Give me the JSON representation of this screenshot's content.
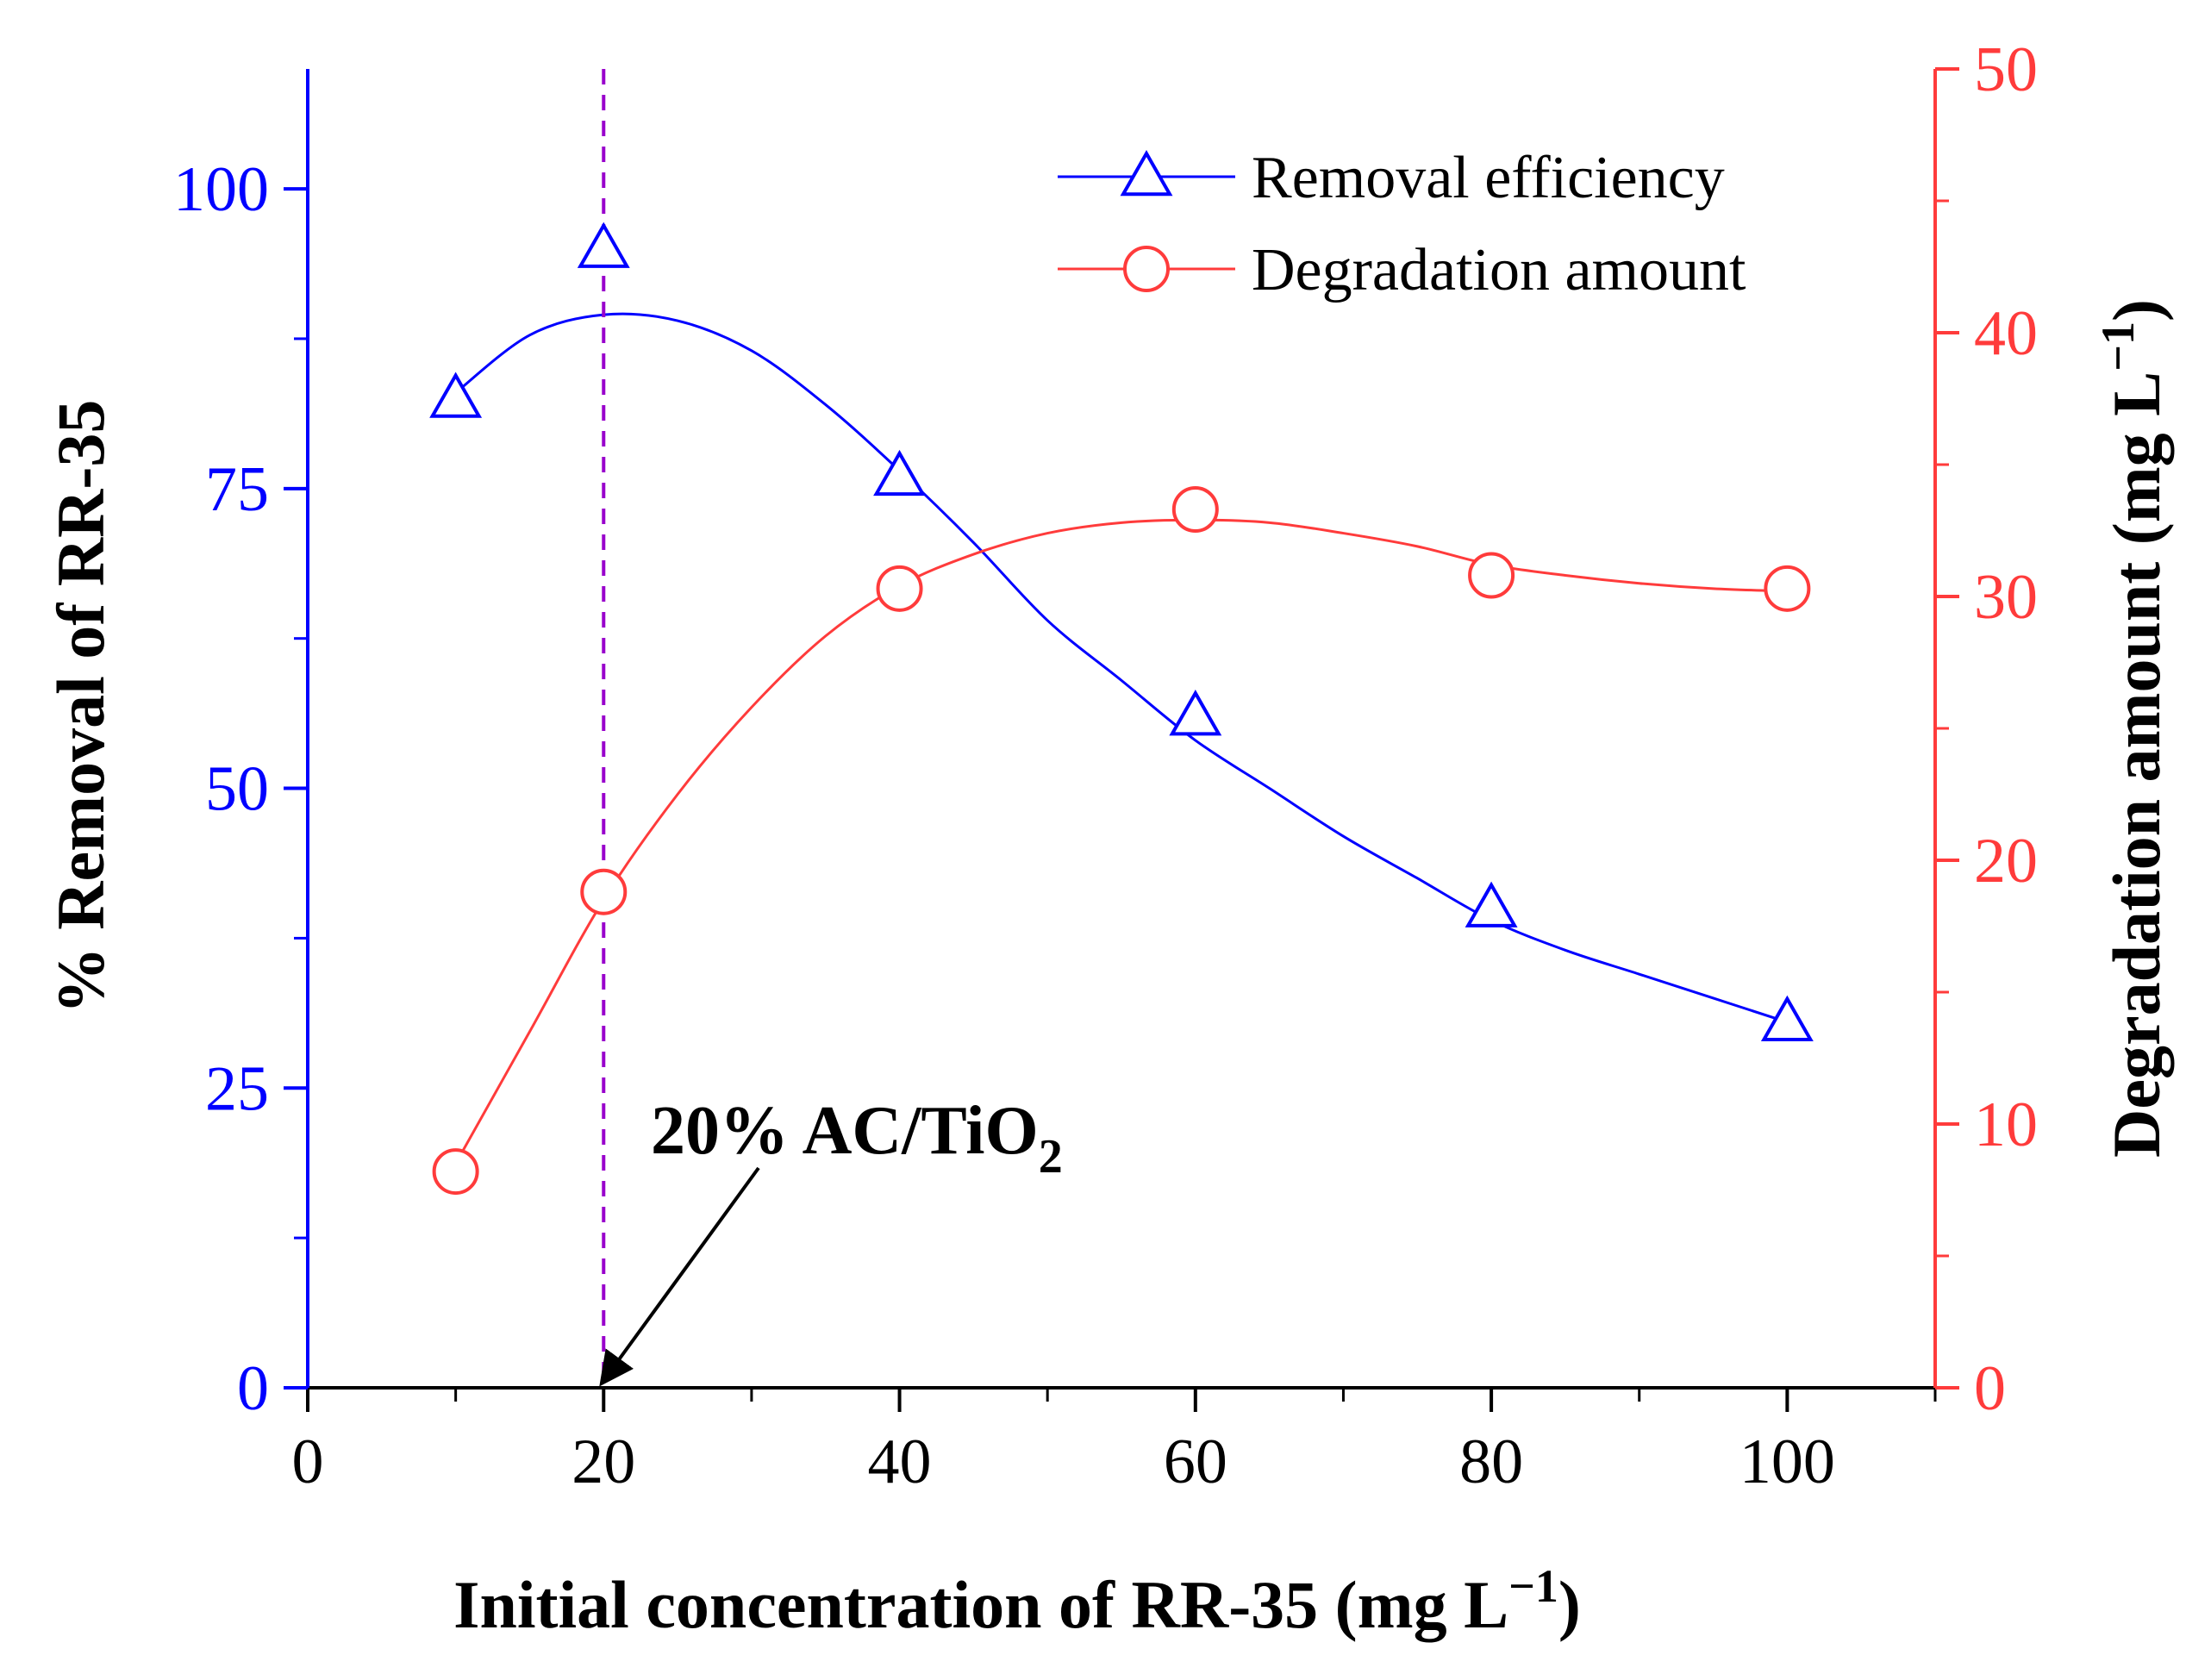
{
  "chart_data": {
    "type": "line",
    "x": [
      10,
      20,
      40,
      60,
      80,
      100
    ],
    "xlabel_main": "Initial concentration of RR-35 (mg L",
    "xlabel_sup": "−1",
    "xlabel_end": ")",
    "xlim": [
      0,
      110
    ],
    "xticks": [
      0,
      20,
      40,
      60,
      80,
      100
    ],
    "xticks_minor": [
      10,
      30,
      50,
      70,
      90,
      110
    ],
    "left_axis": {
      "label": "% Removal of RR-35",
      "ylim": [
        0,
        110
      ],
      "ticks": [
        0,
        25,
        50,
        75,
        100
      ],
      "color": "#0000FF"
    },
    "right_axis": {
      "label_main": "Degradation amount (mg L",
      "label_sup": "−1",
      "label_end": ")",
      "ylim": [
        0,
        50
      ],
      "ticks": [
        0,
        10,
        20,
        30,
        40,
        50
      ],
      "color": "#FF3B3B"
    },
    "series": [
      {
        "name": "Removal efficiency",
        "axis": "left",
        "marker": "triangle",
        "color": "#0000FF",
        "values": [
          82.5,
          95,
          76,
          56,
          40,
          30.5
        ]
      },
      {
        "name": "Degradation amount",
        "axis": "right",
        "marker": "circle",
        "color": "#FF3B3B",
        "values": [
          8.2,
          18.8,
          30.3,
          33.3,
          30.8,
          30.3
        ]
      }
    ],
    "fit_curves": [
      {
        "series": "Removal efficiency",
        "x": [
          10,
          15,
          20,
          25,
          30,
          35,
          40,
          45,
          50,
          55,
          60,
          65,
          70,
          75,
          80,
          85,
          90,
          95,
          100
        ],
        "y": [
          83,
          87.8,
          89.5,
          89,
          86.5,
          82,
          76.5,
          70.5,
          64,
          59,
          54,
          50,
          46,
          42.5,
          39,
          36.5,
          34.5,
          32.5,
          30.5
        ]
      },
      {
        "series": "Degradation amount",
        "x": [
          10,
          15,
          20,
          25,
          30,
          35,
          40,
          45,
          50,
          55,
          60,
          65,
          70,
          75,
          80,
          85,
          90,
          95,
          100
        ],
        "y": [
          8.5,
          13.5,
          18.5,
          22.5,
          25.8,
          28.5,
          30.4,
          31.6,
          32.4,
          32.8,
          32.9,
          32.8,
          32.4,
          31.9,
          31.2,
          30.8,
          30.5,
          30.3,
          30.2
        ]
      }
    ],
    "reference_line": {
      "x": 20,
      "color": "#9900CC",
      "style": "dashed"
    },
    "annotation": {
      "text_main": "20% AC/TiO",
      "text_sub": "2",
      "arrow_to": {
        "x": 20,
        "y": 0
      }
    },
    "legend_placement": "top-right",
    "grid": false
  }
}
